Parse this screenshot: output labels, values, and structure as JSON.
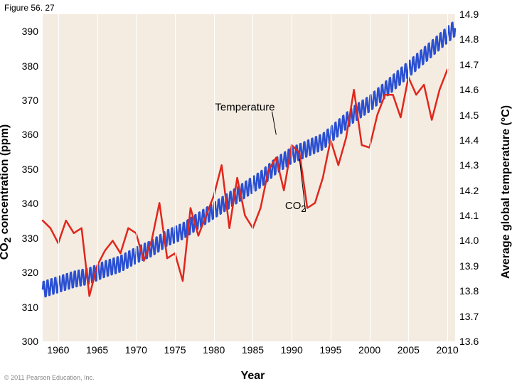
{
  "figure_label": "Figure 56. 27",
  "copyright": "© 2011 Pearson Education, Inc.",
  "plot": {
    "background_color": "#f4ece1",
    "grid_color": "#ffffff",
    "x": {
      "min": 1958,
      "max": 2011,
      "ticks": [
        1960,
        1965,
        1970,
        1975,
        1980,
        1985,
        1990,
        1995,
        2000,
        2005,
        2010
      ],
      "label": "Year"
    },
    "y_left": {
      "min": 300,
      "max": 395,
      "ticks": [
        300,
        310,
        320,
        330,
        340,
        350,
        360,
        370,
        380,
        390
      ],
      "label_html": "CO<sub>2</sub> concentration (ppm)"
    },
    "y_right": {
      "min": 13.6,
      "max": 14.9,
      "ticks": [
        13.6,
        13.7,
        13.8,
        13.9,
        14.0,
        14.1,
        14.2,
        14.3,
        14.4,
        14.5,
        14.6,
        14.7,
        14.8,
        14.9
      ],
      "label": "Average global temperature (°C)"
    }
  },
  "annotations": {
    "temperature": {
      "text": "Temperature",
      "x_year": 1984,
      "y_ppm": 368,
      "leader_to_year": 1988,
      "leader_to_ppm": 360
    },
    "co2": {
      "html": "CO<sub>2</sub>",
      "x_year": 1990.5,
      "y_ppm": 339,
      "leader_to_year": 1991,
      "leader_to_ppm": 353
    }
  },
  "series": {
    "co2": {
      "color": "#2a4fd1",
      "width": 2.5,
      "axis": "left",
      "osc_amp_ppm": 2.6,
      "osc_per_year": 2,
      "baseline": [
        {
          "year": 1958,
          "v": 315
        },
        {
          "year": 1960,
          "v": 316.5
        },
        {
          "year": 1962,
          "v": 318
        },
        {
          "year": 1964,
          "v": 319
        },
        {
          "year": 1966,
          "v": 321
        },
        {
          "year": 1968,
          "v": 322.5
        },
        {
          "year": 1970,
          "v": 325
        },
        {
          "year": 1972,
          "v": 327
        },
        {
          "year": 1974,
          "v": 330
        },
        {
          "year": 1976,
          "v": 332
        },
        {
          "year": 1978,
          "v": 335
        },
        {
          "year": 1980,
          "v": 338
        },
        {
          "year": 1982,
          "v": 341
        },
        {
          "year": 1984,
          "v": 344
        },
        {
          "year": 1986,
          "v": 347
        },
        {
          "year": 1988,
          "v": 351
        },
        {
          "year": 1990,
          "v": 354
        },
        {
          "year": 1992,
          "v": 356
        },
        {
          "year": 1994,
          "v": 358
        },
        {
          "year": 1996,
          "v": 362
        },
        {
          "year": 1998,
          "v": 366
        },
        {
          "year": 2000,
          "v": 369
        },
        {
          "year": 2002,
          "v": 373
        },
        {
          "year": 2004,
          "v": 377
        },
        {
          "year": 2006,
          "v": 381
        },
        {
          "year": 2008,
          "v": 385
        },
        {
          "year": 2010,
          "v": 389
        },
        {
          "year": 2011,
          "v": 391
        }
      ]
    },
    "temperature": {
      "color": "#e1261c",
      "width": 2.5,
      "axis": "right",
      "points": [
        {
          "year": 1958,
          "v": 14.08
        },
        {
          "year": 1959,
          "v": 14.05
        },
        {
          "year": 1960,
          "v": 13.99
        },
        {
          "year": 1961,
          "v": 14.08
        },
        {
          "year": 1962,
          "v": 14.03
        },
        {
          "year": 1963,
          "v": 14.05
        },
        {
          "year": 1964,
          "v": 13.78
        },
        {
          "year": 1965,
          "v": 13.9
        },
        {
          "year": 1966,
          "v": 13.96
        },
        {
          "year": 1967,
          "v": 14.0
        },
        {
          "year": 1968,
          "v": 13.95
        },
        {
          "year": 1969,
          "v": 14.05
        },
        {
          "year": 1970,
          "v": 14.03
        },
        {
          "year": 1971,
          "v": 13.92
        },
        {
          "year": 1972,
          "v": 14.0
        },
        {
          "year": 1973,
          "v": 14.15
        },
        {
          "year": 1974,
          "v": 13.93
        },
        {
          "year": 1975,
          "v": 13.95
        },
        {
          "year": 1976,
          "v": 13.84
        },
        {
          "year": 1977,
          "v": 14.13
        },
        {
          "year": 1978,
          "v": 14.02
        },
        {
          "year": 1979,
          "v": 14.1
        },
        {
          "year": 1980,
          "v": 14.18
        },
        {
          "year": 1981,
          "v": 14.3
        },
        {
          "year": 1982,
          "v": 14.05
        },
        {
          "year": 1983,
          "v": 14.25
        },
        {
          "year": 1984,
          "v": 14.1
        },
        {
          "year": 1985,
          "v": 14.05
        },
        {
          "year": 1986,
          "v": 14.13
        },
        {
          "year": 1987,
          "v": 14.28
        },
        {
          "year": 1988,
          "v": 14.33
        },
        {
          "year": 1989,
          "v": 14.2
        },
        {
          "year": 1990,
          "v": 14.38
        },
        {
          "year": 1991,
          "v": 14.35
        },
        {
          "year": 1992,
          "v": 14.13
        },
        {
          "year": 1993,
          "v": 14.15
        },
        {
          "year": 1994,
          "v": 14.25
        },
        {
          "year": 1995,
          "v": 14.4
        },
        {
          "year": 1996,
          "v": 14.3
        },
        {
          "year": 1997,
          "v": 14.41
        },
        {
          "year": 1998,
          "v": 14.6
        },
        {
          "year": 1999,
          "v": 14.38
        },
        {
          "year": 2000,
          "v": 14.37
        },
        {
          "year": 2001,
          "v": 14.5
        },
        {
          "year": 2002,
          "v": 14.58
        },
        {
          "year": 2003,
          "v": 14.58
        },
        {
          "year": 2004,
          "v": 14.49
        },
        {
          "year": 2005,
          "v": 14.65
        },
        {
          "year": 2006,
          "v": 14.58
        },
        {
          "year": 2007,
          "v": 14.62
        },
        {
          "year": 2008,
          "v": 14.48
        },
        {
          "year": 2009,
          "v": 14.6
        },
        {
          "year": 2010,
          "v": 14.68
        }
      ]
    }
  }
}
